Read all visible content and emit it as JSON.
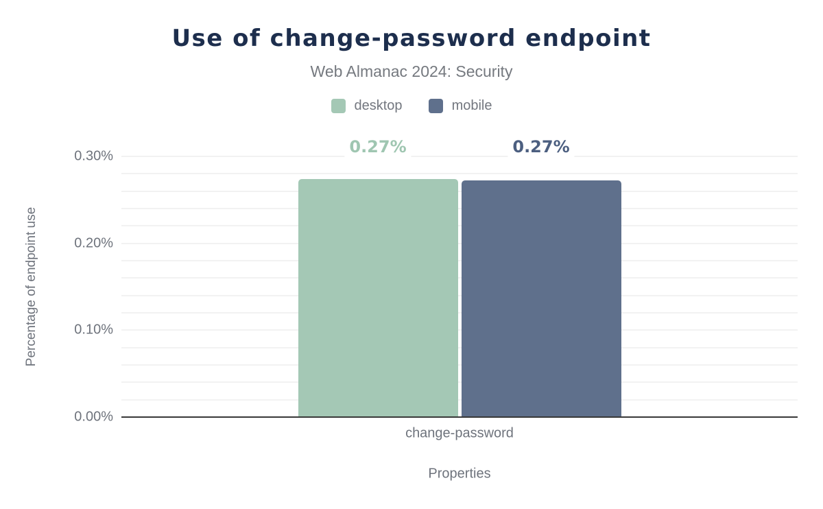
{
  "chart_data": {
    "type": "bar",
    "title": "Use of change-password endpoint",
    "subtitle": "Web Almanac 2024: Security",
    "xlabel": "Properties",
    "ylabel": "Percentage of endpoint use",
    "categories": [
      "change-password"
    ],
    "series": [
      {
        "name": "desktop",
        "values": [
          0.27
        ],
        "labels": [
          "0.27%"
        ],
        "values_precise": [
          0.274
        ],
        "color": "#a4c8b5",
        "label_color": "#9fc6b1"
      },
      {
        "name": "mobile",
        "values": [
          0.27
        ],
        "labels": [
          "0.27%"
        ],
        "values_precise": [
          0.272
        ],
        "color": "#5f708c",
        "label_color": "#4c5f80"
      }
    ],
    "ylim": [
      0,
      0.3
    ],
    "y_tick_labels": [
      "0.00%",
      "0.10%",
      "0.20%",
      "0.30%"
    ],
    "y_minor_step": 0.02,
    "grid": true,
    "legend_position": "top"
  },
  "colors": {
    "background": "#ffffff",
    "title_text": "#1d2e4d",
    "subtitle_text": "#75797f",
    "axis_text": "#6e737c",
    "gridline": "#f2f2f2",
    "axis_line": "#383838"
  }
}
